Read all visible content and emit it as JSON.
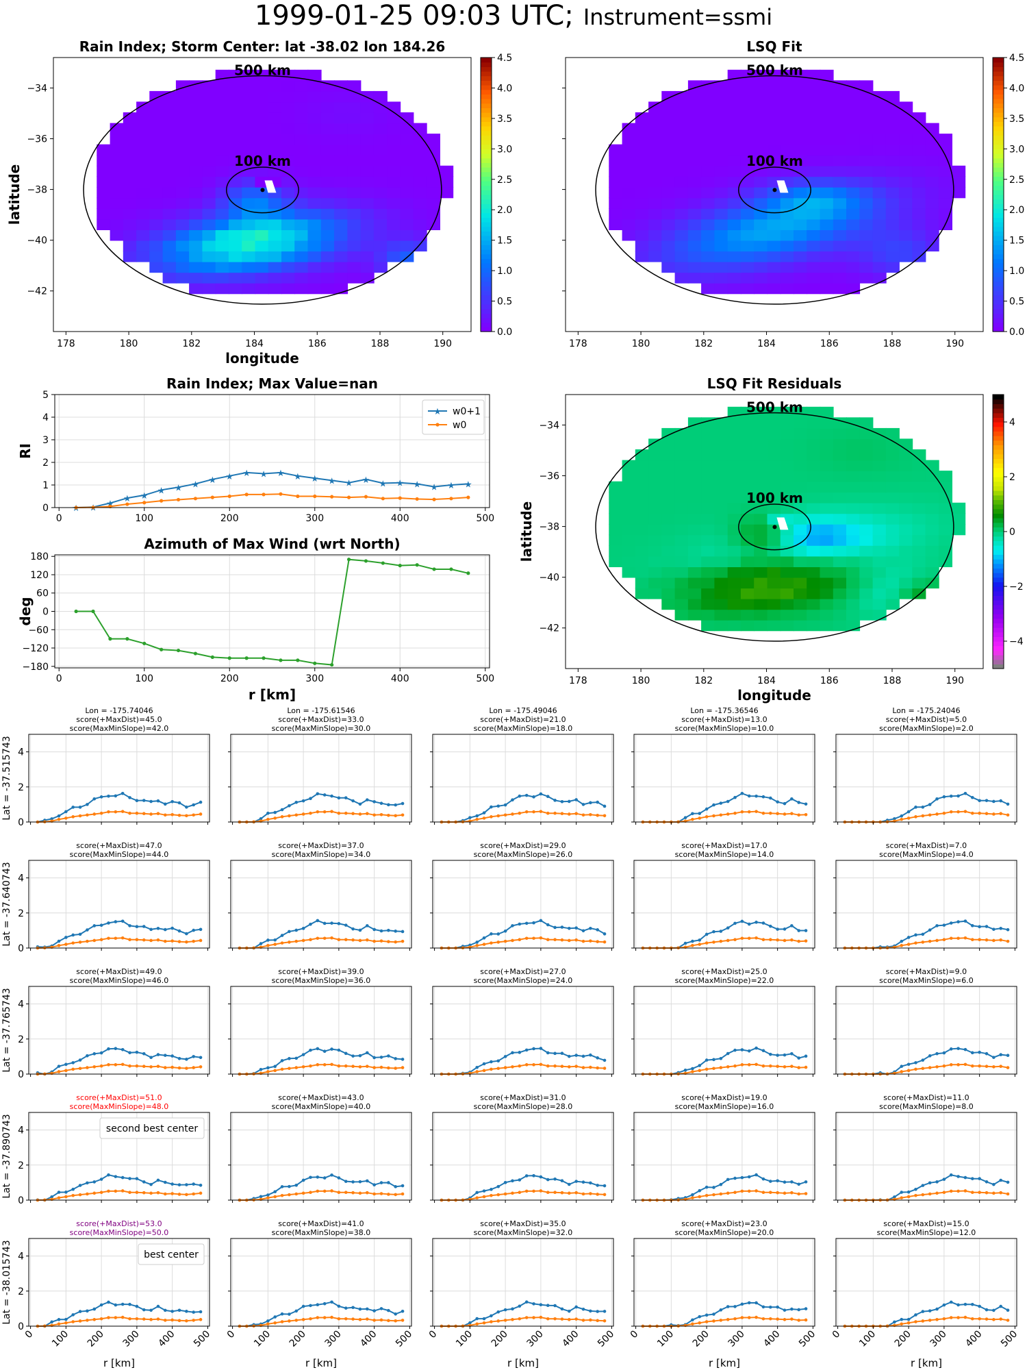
{
  "title": {
    "main": "1999-01-25 09:03 UTC;",
    "instrument": "Instrument=ssmi"
  },
  "colors": {
    "w0p1": "#1f77b4",
    "w0": "#ff7f0e",
    "azimuth": "#2ca02c",
    "second_best": "#ff0000",
    "best": "#800080"
  },
  "ring_labels": [
    "500 km",
    "100 km"
  ],
  "chart_data": [
    {
      "id": "rain-index-map",
      "type": "heatmap",
      "title": "Rain Index; Storm Center: lat -38.02 lon 184.26",
      "xlabel": "longitude",
      "ylabel": "latitude",
      "xlim": [
        177.6,
        190.9
      ],
      "ylim": [
        -43.6,
        -32.8
      ],
      "xticks": [
        178,
        180,
        182,
        184,
        186,
        188,
        190
      ],
      "yticks": [
        -34,
        -36,
        -38,
        -40,
        -42
      ],
      "colorbar": {
        "range": [
          0.0,
          4.5
        ],
        "ticks": [
          "0.0",
          "0.5",
          "1.0",
          "1.5",
          "2.0",
          "2.5",
          "3.0",
          "3.5",
          "4.0",
          "4.5"
        ],
        "colormap": "rainbow"
      },
      "center": {
        "lat": -38.02,
        "lon": 184.26
      }
    },
    {
      "id": "lsq-fit-map",
      "type": "heatmap",
      "title": "LSQ Fit",
      "xlim": [
        177.6,
        190.9
      ],
      "ylim": [
        -43.6,
        -32.8
      ],
      "xticks": [
        178,
        180,
        182,
        184,
        186,
        188,
        190
      ],
      "yticks": [
        -34,
        -36,
        -38,
        -40,
        -42
      ],
      "colorbar": {
        "range": [
          0.0,
          4.5
        ],
        "ticks": [
          "0.0",
          "0.5",
          "1.0",
          "1.5",
          "2.0",
          "2.5",
          "3.0",
          "3.5",
          "4.0",
          "4.5"
        ],
        "colormap": "rainbow"
      }
    },
    {
      "id": "rain-index-profile",
      "type": "line",
      "title": "Rain Index; Max Value=nan",
      "xlabel": "",
      "ylabel": "RI",
      "xlim": [
        -5,
        505
      ],
      "ylim": [
        0,
        5
      ],
      "xticks": [
        0,
        100,
        200,
        300,
        400,
        500
      ],
      "yticks": [
        0,
        1,
        2,
        3,
        4,
        5
      ],
      "legend": "top-right",
      "x": [
        20,
        40,
        60,
        80,
        100,
        120,
        140,
        160,
        180,
        200,
        220,
        240,
        260,
        280,
        300,
        320,
        340,
        360,
        380,
        400,
        420,
        440,
        460,
        480
      ],
      "series": [
        {
          "name": "w0+1",
          "values": [
            0,
            0.02,
            0.2,
            0.42,
            0.55,
            0.78,
            0.9,
            1.05,
            1.25,
            1.4,
            1.55,
            1.5,
            1.55,
            1.4,
            1.3,
            1.2,
            1.1,
            1.25,
            1.08,
            1.1,
            1.05,
            0.92,
            1.0,
            1.05
          ]
        },
        {
          "name": "w0",
          "values": [
            0,
            0.01,
            0.05,
            0.15,
            0.22,
            0.3,
            0.35,
            0.4,
            0.45,
            0.5,
            0.58,
            0.58,
            0.6,
            0.5,
            0.5,
            0.48,
            0.45,
            0.48,
            0.4,
            0.42,
            0.38,
            0.36,
            0.4,
            0.45
          ]
        }
      ]
    },
    {
      "id": "azimuth-profile",
      "type": "line",
      "title": "Azimuth of Max Wind (wrt North)",
      "xlabel": "r [km]",
      "ylabel": "deg",
      "xlim": [
        -5,
        505
      ],
      "ylim": [
        -185,
        185
      ],
      "xticks": [
        0,
        100,
        200,
        300,
        400,
        500
      ],
      "yticks": [
        180,
        120,
        60,
        0,
        -60,
        -120,
        -180
      ],
      "x": [
        20,
        40,
        60,
        80,
        100,
        120,
        140,
        160,
        180,
        200,
        220,
        240,
        260,
        280,
        300,
        320,
        340,
        360,
        380,
        400,
        420,
        440,
        460,
        480
      ],
      "values": [
        0,
        0,
        -90,
        -90,
        -105,
        -125,
        -128,
        -138,
        -150,
        -153,
        -153,
        -153,
        -160,
        -160,
        -170,
        -175,
        170,
        165,
        158,
        150,
        152,
        138,
        138,
        125
      ]
    },
    {
      "id": "lsq-residual-map",
      "type": "heatmap",
      "title": "LSQ Fit Residuals",
      "xlabel": "longitude",
      "ylabel": "latitude",
      "xlim": [
        177.6,
        190.9
      ],
      "ylim": [
        -43.6,
        -32.8
      ],
      "xticks": [
        178,
        180,
        182,
        184,
        186,
        188,
        190
      ],
      "yticks": [
        -34,
        -36,
        -38,
        -40,
        -42
      ],
      "colorbar": {
        "range": [
          -5,
          5
        ],
        "ticks": [
          "4",
          "2",
          "0",
          "−2",
          "−4"
        ],
        "colormap": "gist_ncar"
      }
    },
    {
      "id": "candidate-grid",
      "type": "line",
      "xlabel": "r [km]",
      "xlim": [
        -5,
        505
      ],
      "ylim": [
        0,
        5
      ],
      "xticks": [
        0,
        100,
        200,
        300,
        400,
        500
      ],
      "yticks": [
        0,
        2,
        4
      ],
      "lon_labels": [
        "Lon = -175.74046",
        "Lon = -175.61546",
        "Lon = -175.49046",
        "Lon = -175.36546",
        "Lon = -175.24046"
      ],
      "lat_labels": [
        "Lat = -37.515743",
        "Lat = -37.640743",
        "Lat = -37.765743",
        "Lat = -37.890743",
        "Lat = -38.015743"
      ],
      "scores": [
        [
          [
            45,
            42
          ],
          [
            33,
            30
          ],
          [
            21,
            18
          ],
          [
            13,
            10
          ],
          [
            5,
            2
          ]
        ],
        [
          [
            47,
            44
          ],
          [
            37,
            34
          ],
          [
            29,
            26
          ],
          [
            17,
            14
          ],
          [
            7,
            4
          ]
        ],
        [
          [
            49,
            46
          ],
          [
            39,
            36
          ],
          [
            27,
            24
          ],
          [
            25,
            22
          ],
          [
            9,
            6
          ]
        ],
        [
          [
            51,
            48
          ],
          [
            43,
            40
          ],
          [
            31,
            28
          ],
          [
            19,
            16
          ],
          [
            11,
            8
          ]
        ],
        [
          [
            53,
            50
          ],
          [
            41,
            38
          ],
          [
            35,
            32
          ],
          [
            23,
            20
          ],
          [
            15,
            12
          ]
        ]
      ],
      "score_label_a": "score(+MaxDist)=",
      "score_label_b": "score(MaxMinSlope)=",
      "annotations": {
        "second_best": "second best center",
        "best": "best center"
      }
    }
  ]
}
